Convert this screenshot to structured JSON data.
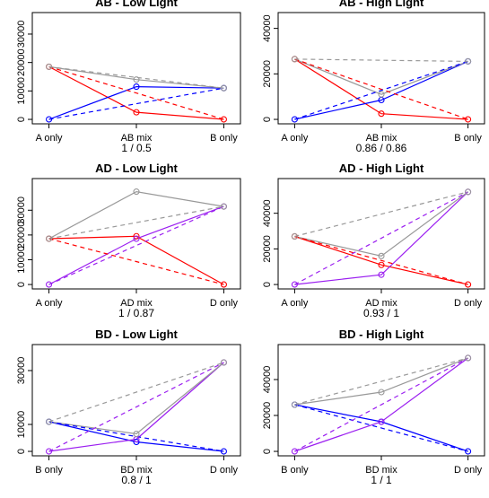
{
  "chart_data": [
    {
      "type": "line",
      "title": "AB - Low Light",
      "categories": [
        "A only",
        "AB mix",
        "B only"
      ],
      "subtitle": "1 / 0.5",
      "yticks": [
        0,
        10000,
        20000,
        30000
      ],
      "ylim": [
        0,
        36000
      ],
      "series": [
        {
          "color": "#ff0000",
          "dash": false,
          "points": [
            [
              0,
              18500
            ],
            [
              1,
              2500
            ],
            [
              2,
              0
            ]
          ]
        },
        {
          "color": "#0000ff",
          "dash": false,
          "points": [
            [
              0,
              0
            ],
            [
              1,
              11500
            ],
            [
              2,
              11000
            ]
          ]
        },
        {
          "color": "#999999",
          "dash": false,
          "points": [
            [
              0,
              18500
            ],
            [
              1,
              14000
            ],
            [
              2,
              11000
            ]
          ]
        },
        {
          "color": "#ff0000",
          "dash": true,
          "points": [
            [
              0,
              18500
            ],
            [
              2,
              0
            ]
          ]
        },
        {
          "color": "#0000ff",
          "dash": true,
          "points": [
            [
              0,
              0
            ],
            [
              2,
              11000
            ]
          ]
        },
        {
          "color": "#999999",
          "dash": true,
          "points": [
            [
              0,
              18500
            ],
            [
              2,
              11000
            ]
          ]
        }
      ]
    },
    {
      "type": "line",
      "title": "AB - High Light",
      "categories": [
        "A only",
        "AB mix",
        "B only"
      ],
      "subtitle": "0.86 / 0.86",
      "yticks": [
        0,
        20000,
        40000
      ],
      "ylim": [
        0,
        45000
      ],
      "series": [
        {
          "color": "#ff0000",
          "dash": false,
          "points": [
            [
              0,
              26500
            ],
            [
              1,
              2500
            ],
            [
              2,
              0
            ]
          ]
        },
        {
          "color": "#0000ff",
          "dash": false,
          "points": [
            [
              0,
              0
            ],
            [
              1,
              8500
            ],
            [
              2,
              25500
            ]
          ]
        },
        {
          "color": "#999999",
          "dash": false,
          "points": [
            [
              0,
              26500
            ],
            [
              1,
              11000
            ],
            [
              2,
              25500
            ]
          ]
        },
        {
          "color": "#ff0000",
          "dash": true,
          "points": [
            [
              0,
              26500
            ],
            [
              2,
              0
            ]
          ]
        },
        {
          "color": "#0000ff",
          "dash": true,
          "points": [
            [
              0,
              0
            ],
            [
              2,
              25500
            ]
          ]
        },
        {
          "color": "#999999",
          "dash": true,
          "points": [
            [
              0,
              26500
            ],
            [
              2,
              25500
            ]
          ]
        }
      ]
    },
    {
      "type": "line",
      "title": "AD - Low Light",
      "categories": [
        "A only",
        "AD mix",
        "D only"
      ],
      "subtitle": "1 / 0.87",
      "yticks": [
        0,
        10000,
        20000,
        30000
      ],
      "ylim": [
        0,
        41000
      ],
      "series": [
        {
          "color": "#ff0000",
          "dash": false,
          "points": [
            [
              0,
              18500
            ],
            [
              1,
              19500
            ],
            [
              2,
              0
            ]
          ]
        },
        {
          "color": "#9b1ff0",
          "dash": false,
          "points": [
            [
              0,
              0
            ],
            [
              1,
              18500
            ],
            [
              2,
              31500
            ]
          ]
        },
        {
          "color": "#999999",
          "dash": false,
          "points": [
            [
              0,
              18500
            ],
            [
              1,
              37500
            ],
            [
              2,
              31500
            ]
          ]
        },
        {
          "color": "#ff0000",
          "dash": true,
          "points": [
            [
              0,
              18500
            ],
            [
              2,
              0
            ]
          ]
        },
        {
          "color": "#9b1ff0",
          "dash": true,
          "points": [
            [
              0,
              0
            ],
            [
              2,
              31500
            ]
          ]
        },
        {
          "color": "#999999",
          "dash": true,
          "points": [
            [
              0,
              18500
            ],
            [
              2,
              31500
            ]
          ]
        }
      ]
    },
    {
      "type": "line",
      "title": "AD - High Light",
      "categories": [
        "A only",
        "AD mix",
        "D only"
      ],
      "subtitle": "0.93 / 1",
      "yticks": [
        0,
        20000,
        40000
      ],
      "ylim": [
        0,
        57000
      ],
      "series": [
        {
          "color": "#ff0000",
          "dash": false,
          "points": [
            [
              0,
              27000
            ],
            [
              1,
              11000
            ],
            [
              2,
              0
            ]
          ]
        },
        {
          "color": "#9b1ff0",
          "dash": false,
          "points": [
            [
              0,
              0
            ],
            [
              1,
              5500
            ],
            [
              2,
              52000
            ]
          ]
        },
        {
          "color": "#999999",
          "dash": false,
          "points": [
            [
              0,
              27000
            ],
            [
              1,
              16000
            ],
            [
              2,
              52000
            ]
          ]
        },
        {
          "color": "#ff0000",
          "dash": true,
          "points": [
            [
              0,
              27000
            ],
            [
              2,
              0
            ]
          ]
        },
        {
          "color": "#9b1ff0",
          "dash": true,
          "points": [
            [
              0,
              0
            ],
            [
              2,
              52000
            ]
          ]
        },
        {
          "color": "#999999",
          "dash": true,
          "points": [
            [
              0,
              27000
            ],
            [
              2,
              52000
            ]
          ]
        }
      ]
    },
    {
      "type": "line",
      "title": "BD - Low Light",
      "categories": [
        "B only",
        "BD mix",
        "D only"
      ],
      "subtitle": "0.8 / 1",
      "yticks": [
        0,
        10000,
        30000
      ],
      "ylim": [
        0,
        38000
      ],
      "series": [
        {
          "color": "#0000ff",
          "dash": false,
          "points": [
            [
              0,
              11000
            ],
            [
              1,
              3500
            ],
            [
              2,
              0
            ]
          ]
        },
        {
          "color": "#9b1ff0",
          "dash": false,
          "points": [
            [
              0,
              0
            ],
            [
              1,
              4500
            ],
            [
              2,
              33000
            ]
          ]
        },
        {
          "color": "#999999",
          "dash": false,
          "points": [
            [
              0,
              11000
            ],
            [
              1,
              6500
            ],
            [
              2,
              33000
            ]
          ]
        },
        {
          "color": "#0000ff",
          "dash": true,
          "points": [
            [
              0,
              11000
            ],
            [
              2,
              0
            ]
          ]
        },
        {
          "color": "#9b1ff0",
          "dash": true,
          "points": [
            [
              0,
              0
            ],
            [
              2,
              33000
            ]
          ]
        },
        {
          "color": "#999999",
          "dash": true,
          "points": [
            [
              0,
              11000
            ],
            [
              2,
              33000
            ]
          ]
        }
      ]
    },
    {
      "type": "line",
      "title": "BD - High Light",
      "categories": [
        "B only",
        "BD mix",
        "D only"
      ],
      "subtitle": "1 / 1",
      "yticks": [
        0,
        20000,
        40000
      ],
      "ylim": [
        0,
        57000
      ],
      "series": [
        {
          "color": "#0000ff",
          "dash": false,
          "points": [
            [
              0,
              26000
            ],
            [
              1,
              16500
            ],
            [
              2,
              0
            ]
          ]
        },
        {
          "color": "#9b1ff0",
          "dash": false,
          "points": [
            [
              0,
              0
            ],
            [
              1,
              16500
            ],
            [
              2,
              52000
            ]
          ]
        },
        {
          "color": "#999999",
          "dash": false,
          "points": [
            [
              0,
              26000
            ],
            [
              1,
              33000
            ],
            [
              2,
              52000
            ]
          ]
        },
        {
          "color": "#0000ff",
          "dash": true,
          "points": [
            [
              0,
              26000
            ],
            [
              2,
              0
            ]
          ]
        },
        {
          "color": "#9b1ff0",
          "dash": true,
          "points": [
            [
              0,
              0
            ],
            [
              2,
              52000
            ]
          ]
        },
        {
          "color": "#999999",
          "dash": true,
          "points": [
            [
              0,
              26000
            ],
            [
              2,
              52000
            ]
          ]
        }
      ]
    }
  ]
}
